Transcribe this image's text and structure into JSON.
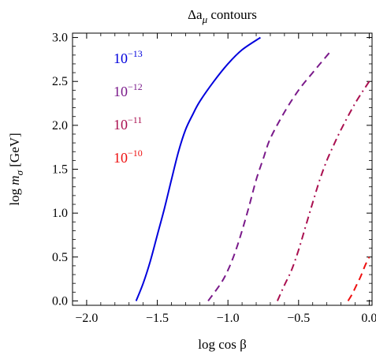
{
  "chart_data": {
    "type": "line",
    "title": "Δa",
    "title_sub": "μ",
    "title_rest": " contours",
    "xlabel": "log cos β",
    "ylabel_prefix": "log ",
    "ylabel_math": "m",
    "ylabel_sub": "σ",
    "ylabel_suffix": " [GeV]",
    "xlim": [
      -2.1,
      0.02
    ],
    "ylim": [
      -0.05,
      3.05
    ],
    "xticks": [
      -2.0,
      -1.5,
      -1.0,
      -0.5,
      0.0
    ],
    "xtick_labels": [
      "−2.0",
      "−1.5",
      "−1.0",
      "−0.5",
      "0.0"
    ],
    "yticks": [
      0.0,
      0.5,
      1.0,
      1.5,
      2.0,
      2.5,
      3.0
    ],
    "ytick_labels": [
      "0.0",
      "0.5",
      "1.0",
      "1.5",
      "2.0",
      "2.5",
      "3.0"
    ],
    "legend_position": "upper-left",
    "series": [
      {
        "name": "10−13",
        "label_base": "10",
        "label_exp": "−13",
        "color": "#0000dd",
        "dash": "solid",
        "x": [
          -1.65,
          -1.6,
          -1.55,
          -1.5,
          -1.45,
          -1.4,
          -1.35,
          -1.3,
          -1.25,
          -1.2,
          -1.1,
          -1.0,
          -0.9,
          -0.77
        ],
        "y": [
          0.0,
          0.2,
          0.45,
          0.75,
          1.05,
          1.38,
          1.7,
          1.95,
          2.12,
          2.27,
          2.5,
          2.7,
          2.86,
          3.0
        ]
      },
      {
        "name": "10−12",
        "label_base": "10",
        "label_exp": "−12",
        "color": "#7a1a8a",
        "dash": "dashed",
        "x": [
          -1.14,
          -1.05,
          -1.0,
          -0.95,
          -0.9,
          -0.85,
          -0.8,
          -0.75,
          -0.7,
          -0.6,
          -0.5,
          -0.4,
          -0.27
        ],
        "y": [
          0.0,
          0.2,
          0.35,
          0.55,
          0.8,
          1.08,
          1.38,
          1.62,
          1.85,
          2.15,
          2.4,
          2.6,
          2.85
        ]
      },
      {
        "name": "10−11",
        "label_base": "10",
        "label_exp": "−11",
        "color": "#aa1050",
        "dash": "dashdot",
        "x": [
          -0.65,
          -0.6,
          -0.55,
          -0.5,
          -0.45,
          -0.4,
          -0.35,
          -0.3,
          -0.25,
          -0.2,
          -0.1,
          0.0
        ],
        "y": [
          0.0,
          0.18,
          0.35,
          0.58,
          0.85,
          1.12,
          1.38,
          1.6,
          1.78,
          1.95,
          2.25,
          2.5
        ]
      },
      {
        "name": "10−10",
        "label_base": "10",
        "label_exp": "−10",
        "color": "#ee1010",
        "dash": "dashed",
        "x": [
          -0.15,
          -0.12,
          -0.09,
          -0.06,
          -0.03,
          0.0
        ],
        "y": [
          0.0,
          0.08,
          0.18,
          0.28,
          0.4,
          0.5
        ]
      }
    ]
  }
}
